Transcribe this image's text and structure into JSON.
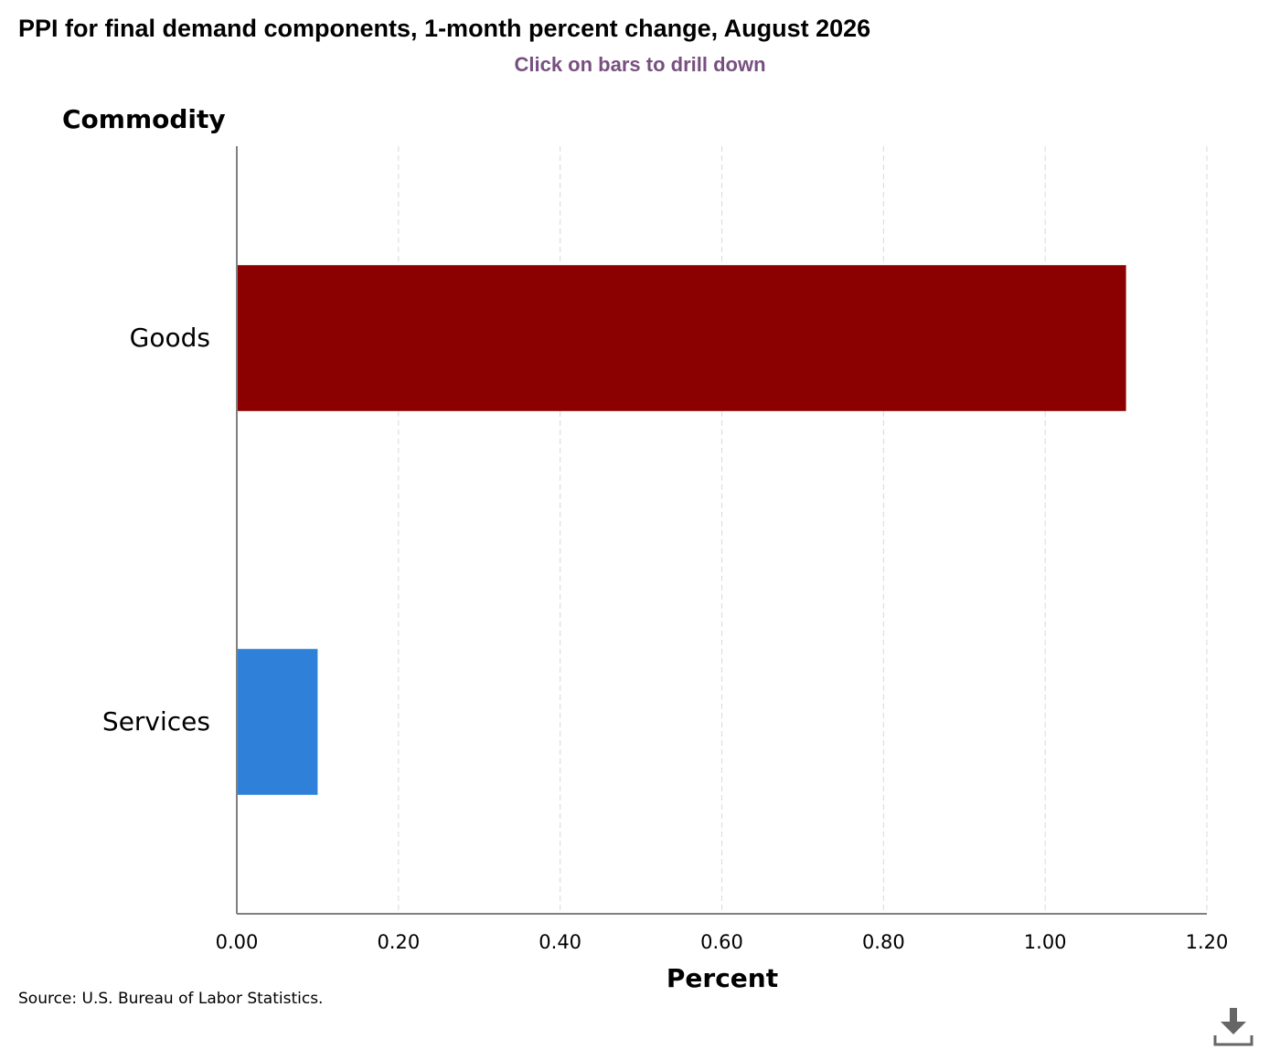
{
  "chart_title": "PPI for final demand components, 1-month percent change, August 2026",
  "chart_subtitle": "Click on bars to drill down",
  "source": "Source: U.S. Bureau of Labor Statistics.",
  "chart_data": {
    "type": "bar",
    "orientation": "horizontal",
    "categories": [
      "Goods",
      "Services"
    ],
    "values": [
      1.1,
      0.1
    ],
    "bar_colors": [
      "#8b0000",
      "#2f80d9"
    ],
    "xlabel": "Percent",
    "ylabel": "Commodity",
    "xlim": [
      0,
      1.2
    ],
    "xticks": [
      "0.00",
      "0.20",
      "0.40",
      "0.60",
      "0.80",
      "1.00",
      "1.20"
    ],
    "grid": "vertical-dashed",
    "legend": "none"
  },
  "colors": {
    "title": "#000000",
    "subtitle": "#77507f",
    "axis": "#808080",
    "grid": "#d9d9d9",
    "download_icon": "#666666"
  },
  "icons": {
    "download": "download-icon"
  }
}
